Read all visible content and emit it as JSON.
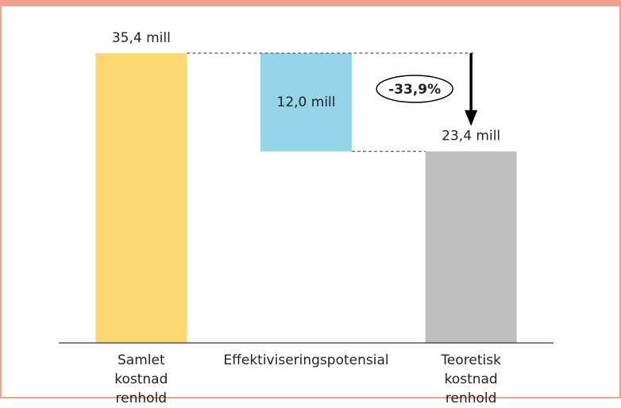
{
  "chart_data": {
    "type": "waterfall",
    "categories": [
      "Samlet kostnad renhold",
      "Effektiviseringspotensial",
      "Teoretisk kostnad renhold"
    ],
    "values": [
      35.4,
      12.0,
      23.4
    ],
    "value_labels": [
      "35,4 mill",
      "12,0 mill",
      "23,4 mill"
    ],
    "measures": [
      "absolute",
      "decrease",
      "total"
    ],
    "colors": [
      "#fdd870",
      "#94d4e8",
      "#bfbfbf"
    ],
    "annotation": "-33,9%"
  }
}
